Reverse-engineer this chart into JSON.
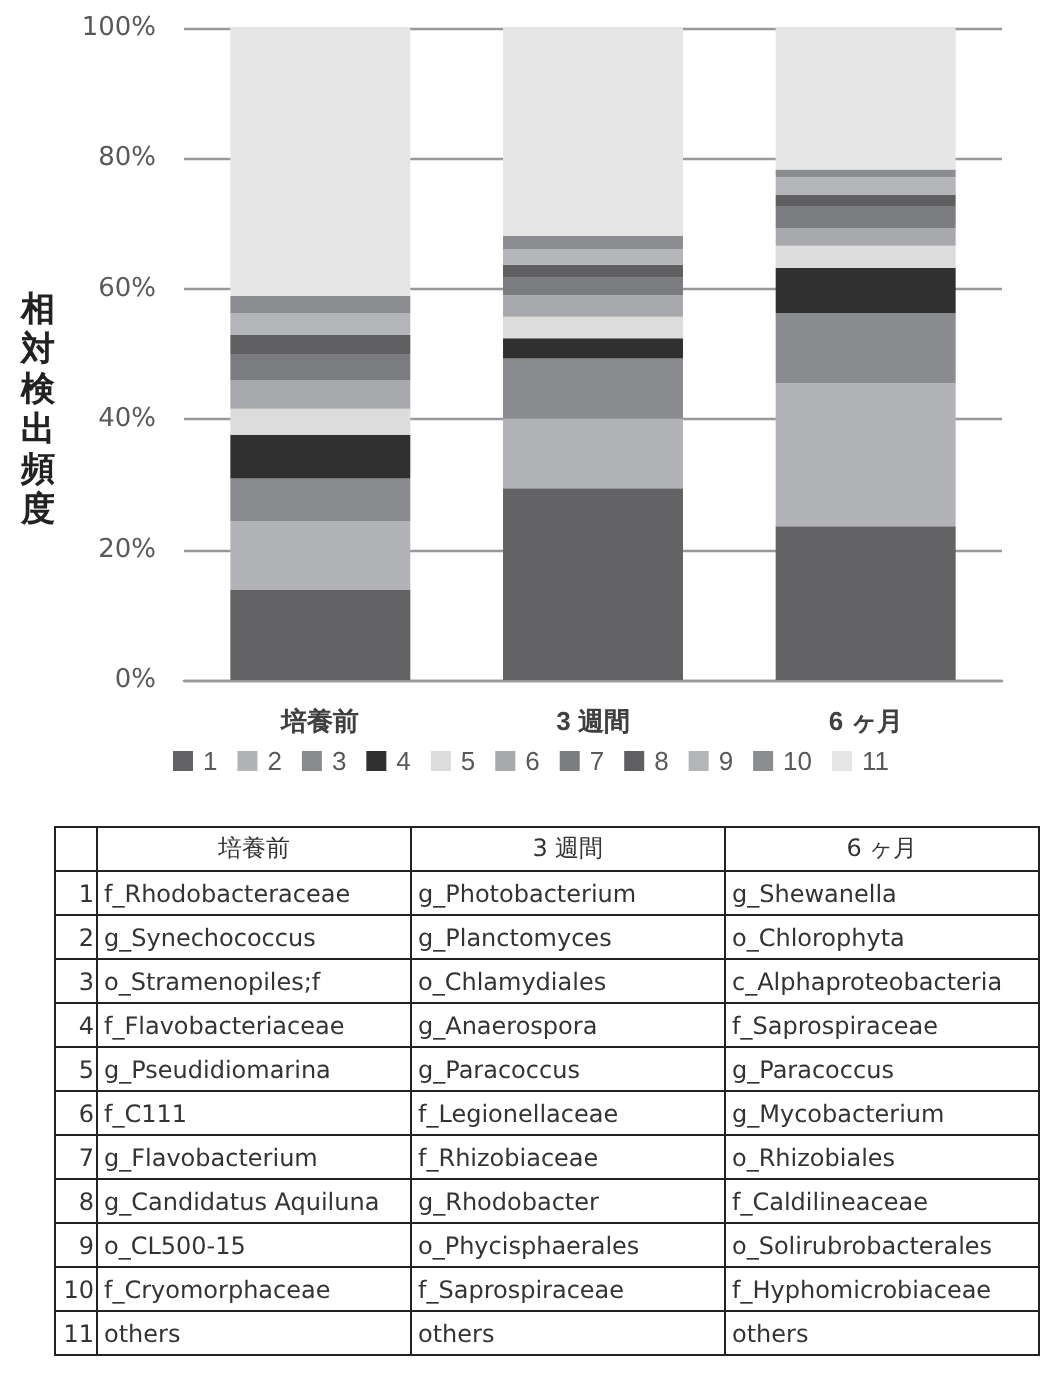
{
  "chart_data": {
    "type": "bar",
    "stacked": true,
    "ylabel": "相対検出頻度",
    "categories": [
      "培養前",
      "3 週間",
      "6 ヶ月"
    ],
    "ylim": [
      0,
      100
    ],
    "yticks": [
      {
        "value": 0,
        "label": "0%"
      },
      {
        "value": 20,
        "label": "20%"
      },
      {
        "value": 40,
        "label": "40%"
      },
      {
        "value": 60,
        "label": "60%"
      },
      {
        "value": 80,
        "label": "80%"
      },
      {
        "value": 100,
        "label": "100%"
      }
    ],
    "grid": "y",
    "legend": "bottom",
    "series": [
      {
        "name": "1",
        "color": "#636365",
        "values": [
          13.8,
          29.4,
          23.6
        ]
      },
      {
        "name": "2",
        "color": "#b2b3b6",
        "values": [
          10.5,
          10.7,
          21.9
        ]
      },
      {
        "name": "3",
        "color": "#8a8b8e",
        "values": [
          6.6,
          9.2,
          10.8
        ]
      },
      {
        "name": "4",
        "color": "#303030",
        "values": [
          6.7,
          3.1,
          6.9
        ]
      },
      {
        "name": "5",
        "color": "#dcdcdd",
        "values": [
          4.0,
          3.3,
          3.4
        ]
      },
      {
        "name": "6",
        "color": "#a8a9ac",
        "values": [
          4.4,
          3.3,
          2.7
        ]
      },
      {
        "name": "7",
        "color": "#7b7c7f",
        "values": [
          4.0,
          2.7,
          3.3
        ]
      },
      {
        "name": "8",
        "color": "#5f5f61",
        "values": [
          2.9,
          2.0,
          1.8
        ]
      },
      {
        "name": "9",
        "color": "#b4b5b8",
        "values": [
          3.3,
          2.4,
          2.7
        ]
      },
      {
        "name": "10",
        "color": "#8c8d90",
        "values": [
          2.7,
          2.0,
          1.2
        ]
      },
      {
        "name": "11",
        "color": "#e6e6e6",
        "values": [
          41.1,
          31.9,
          21.7
        ]
      }
    ],
    "annotations": [
      "f_Rhodobacteraceae",
      "g_Photobacterium",
      "g_Shewanella",
      "g_Synechococcus",
      "g_Planctomyces",
      "o_Chlorophyta",
      "o_Stramenopiles;f",
      "o_Chlamydiales",
      "c_Alphaproteobacteria",
      "f_Flavobacteriaceae",
      "g_Anaerospora",
      "f_Saprospiraceae",
      "g_Pseudidiomarina",
      "g_Paracoccus",
      "g_Paracoccus",
      "f_C111",
      "f_Legionellaceae",
      "g_Mycobacterium",
      "g_Flavobacterium",
      "f_Rhizobiaceae",
      "o_Rhizobiales",
      "g_Candidatus Aquiluna",
      "g_Rhodobacter",
      "f_Caldilineaceae",
      "o_CL500-15",
      "o_Phycisphaerales",
      "o_Solirubrobacterales",
      "f_Cryomorphaceae",
      "f_Saprospiraceae",
      "f_Hyphomicrobiaceae",
      "others",
      "others",
      "others"
    ]
  }
}
